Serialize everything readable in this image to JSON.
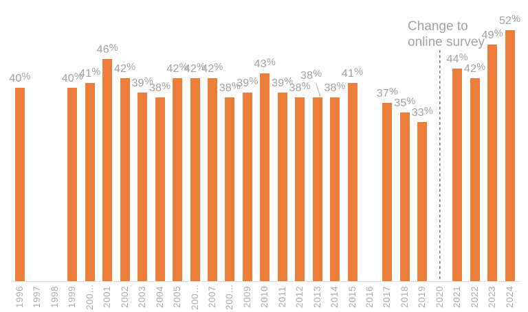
{
  "chart_data": {
    "type": "bar",
    "value_axis_visible": false,
    "grid": "off",
    "legend": "none",
    "ylim": [
      0,
      58
    ],
    "xlabel": "",
    "ylabel": "",
    "callout_year": "2013",
    "annotation": {
      "lines": [
        "Change to",
        "online survey"
      ],
      "year": "2020"
    },
    "colors": {
      "bar": "#EC7D3B",
      "value_label": "#A0A0A0",
      "tick_label": "#ABABAB",
      "axis_line": "#DADADA",
      "dashed_line": "#6F6F6F",
      "leader_line": "#BDBDBD",
      "annotation_text": "#A3A3A3"
    },
    "points": [
      {
        "year": "1996",
        "tick": "1996",
        "value": 40,
        "label": "40%"
      },
      {
        "year": "1997",
        "tick": "1997",
        "value": null,
        "label": ""
      },
      {
        "year": "1998",
        "tick": "1998",
        "value": null,
        "label": ""
      },
      {
        "year": "1999",
        "tick": "1999",
        "value": 40,
        "label": "40%"
      },
      {
        "year": "2000",
        "tick": "200…",
        "value": 41,
        "label": "41%"
      },
      {
        "year": "2001",
        "tick": "2001",
        "value": 46,
        "label": "46%"
      },
      {
        "year": "2002",
        "tick": "2002",
        "value": 42,
        "label": "42%"
      },
      {
        "year": "2003",
        "tick": "2003",
        "value": 39,
        "label": "39%"
      },
      {
        "year": "2004",
        "tick": "2004",
        "value": 38,
        "label": "38%"
      },
      {
        "year": "2005",
        "tick": "2005",
        "value": 42,
        "label": "42%"
      },
      {
        "year": "2006",
        "tick": "200…",
        "value": 42,
        "label": "42%"
      },
      {
        "year": "2007",
        "tick": "2007",
        "value": 42,
        "label": "42%"
      },
      {
        "year": "2008",
        "tick": "200…",
        "value": 38,
        "label": "38%"
      },
      {
        "year": "2009",
        "tick": "2009",
        "value": 39,
        "label": "39%"
      },
      {
        "year": "2010",
        "tick": "2010",
        "value": 43,
        "label": "43%"
      },
      {
        "year": "2011",
        "tick": "2011",
        "value": 39,
        "label": "39%"
      },
      {
        "year": "2012",
        "tick": "2012",
        "value": 38,
        "label": "38%"
      },
      {
        "year": "2013",
        "tick": "2013",
        "value": 38,
        "label": "38%"
      },
      {
        "year": "2014",
        "tick": "2014",
        "value": 38,
        "label": "38%"
      },
      {
        "year": "2015",
        "tick": "2015",
        "value": 41,
        "label": "41%"
      },
      {
        "year": "2016",
        "tick": "2016",
        "value": null,
        "label": ""
      },
      {
        "year": "2017",
        "tick": "2017",
        "value": 37,
        "label": "37%"
      },
      {
        "year": "2018",
        "tick": "2018",
        "value": 35,
        "label": "35%"
      },
      {
        "year": "2019",
        "tick": "2019",
        "value": 33,
        "label": "33%"
      },
      {
        "year": "2020",
        "tick": "2020",
        "value": null,
        "label": ""
      },
      {
        "year": "2021",
        "tick": "2021",
        "value": 44,
        "label": "44%"
      },
      {
        "year": "2022",
        "tick": "2022",
        "value": 42,
        "label": "42%"
      },
      {
        "year": "2023",
        "tick": "2023",
        "value": 49,
        "label": "49%"
      },
      {
        "year": "2024",
        "tick": "2024",
        "value": 52,
        "label": "52%"
      }
    ]
  }
}
